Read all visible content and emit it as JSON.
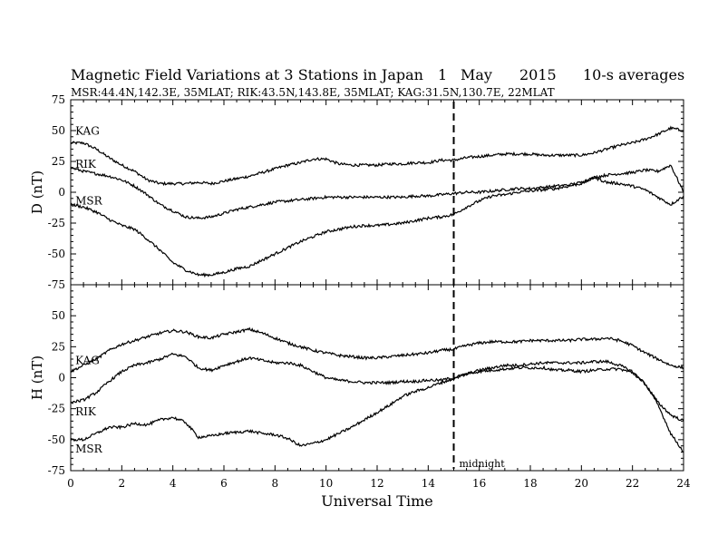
{
  "chart_data": {
    "type": "line",
    "title": {
      "main": "Magnetic Field Variations at 3 Stations in Japan",
      "day": "1",
      "month": "May",
      "year": "2015",
      "resolution": "10-s averages"
    },
    "subtitle": "MSR:44.4N,142.3E, 35MLAT;  RIK:43.5N,143.8E, 35MLAT;  KAG:31.5N,130.7E, 22MLAT",
    "xlabel": "Universal Time",
    "xlim": [
      0,
      24
    ],
    "xticks": [
      "0",
      "2",
      "4",
      "6",
      "8",
      "10",
      "12",
      "14",
      "16",
      "18",
      "20",
      "22",
      "24"
    ],
    "annotation": {
      "x": 15,
      "text": "midnight",
      "style": "dashed vertical line"
    },
    "panels": [
      {
        "ylabel": "D (nT)",
        "ylim": [
          -75,
          75
        ],
        "yticks": [
          "75",
          "50",
          "25",
          "0",
          "-25",
          "-50",
          "-75"
        ],
        "series": [
          {
            "name": "KAG",
            "x": [
              0,
              0.5,
              1,
              1.5,
              2,
              2.5,
              3,
              3.5,
              4,
              4.5,
              5,
              5.5,
              6,
              6.5,
              7,
              7.5,
              8,
              8.5,
              9,
              9.5,
              10,
              10.5,
              11,
              11.5,
              12,
              12.5,
              13,
              13.5,
              14,
              14.5,
              15,
              15.5,
              16,
              16.5,
              17,
              17.5,
              18,
              18.5,
              19,
              19.5,
              20,
              20.5,
              21,
              21.5,
              22,
              22.5,
              23,
              23.5,
              24
            ],
            "values": [
              40,
              40,
              35,
              28,
              22,
              17,
              10,
              7,
              7,
              7,
              8,
              7,
              9,
              11,
              13,
              16,
              19,
              22,
              24,
              27,
              27,
              23,
              22,
              22,
              22,
              23,
              23,
              24,
              24,
              26,
              26,
              28,
              29,
              30,
              31,
              31,
              31,
              30,
              30,
              30,
              30,
              32,
              35,
              38,
              40,
              43,
              47,
              52,
              50
            ]
          },
          {
            "name": "RIK",
            "x": [
              0,
              0.5,
              1,
              1.5,
              2,
              2.5,
              3,
              3.5,
              4,
              4.5,
              5,
              5.5,
              6,
              6.5,
              7,
              7.5,
              8,
              8.5,
              9,
              9.5,
              10,
              10.5,
              11,
              11.5,
              12,
              12.5,
              13,
              13.5,
              14,
              14.5,
              15,
              15.5,
              16,
              16.5,
              17,
              17.5,
              18,
              18.5,
              19,
              19.5,
              20,
              20.5,
              21,
              21.5,
              22,
              22.5,
              23,
              23.5,
              24
            ],
            "values": [
              20,
              17,
              15,
              13,
              10,
              5,
              -2,
              -10,
              -15,
              -20,
              -21,
              -20,
              -17,
              -14,
              -12,
              -10,
              -8,
              -7,
              -6,
              -5,
              -4,
              -4,
              -4,
              -4,
              -4,
              -4,
              -4,
              -3,
              -3,
              -2,
              -1,
              0,
              0,
              1,
              2,
              3,
              3,
              4,
              5,
              6,
              8,
              12,
              14,
              15,
              16,
              18,
              17,
              22,
              0
            ]
          },
          {
            "name": "MSR",
            "x": [
              0,
              0.5,
              1,
              1.5,
              2,
              2.5,
              3,
              3.5,
              4,
              4.5,
              5,
              5.5,
              6,
              6.5,
              7,
              7.5,
              8,
              8.5,
              9,
              9.5,
              10,
              10.5,
              11,
              11.5,
              12,
              12.5,
              13,
              13.5,
              14,
              14.5,
              15,
              15.5,
              16,
              16.5,
              17,
              17.5,
              18,
              18.5,
              19,
              19.5,
              20,
              20.5,
              21,
              21.5,
              22,
              22.5,
              23,
              23.5,
              24
            ],
            "values": [
              -10,
              -12,
              -16,
              -22,
              -27,
              -30,
              -38,
              -47,
              -57,
              -63,
              -67,
              -67,
              -65,
              -62,
              -60,
              -55,
              -50,
              -45,
              -40,
              -36,
              -32,
              -30,
              -28,
              -27,
              -27,
              -26,
              -25,
              -23,
              -21,
              -20,
              -18,
              -12,
              -7,
              -3,
              -2,
              0,
              1,
              2,
              3,
              5,
              7,
              12,
              8,
              7,
              5,
              2,
              -4,
              -10,
              -3
            ]
          }
        ]
      },
      {
        "ylabel": "H (nT)",
        "ylim": [
          -75,
          75
        ],
        "yticks": [
          "75",
          "50",
          "25",
          "0",
          "-25",
          "-50",
          "-75"
        ],
        "series": [
          {
            "name": "KAG",
            "x": [
              0,
              0.5,
              1,
              1.5,
              2,
              2.5,
              3,
              3.5,
              4,
              4.5,
              5,
              5.5,
              6,
              6.5,
              7,
              7.5,
              8,
              8.5,
              9,
              9.5,
              10,
              10.5,
              11,
              11.5,
              12,
              12.5,
              13,
              13.5,
              14,
              14.5,
              15,
              15.5,
              16,
              16.5,
              17,
              17.5,
              18,
              18.5,
              19,
              19.5,
              20,
              20.5,
              21,
              21.5,
              22,
              22.5,
              23,
              23.5,
              24
            ],
            "values": [
              5,
              10,
              15,
              22,
              27,
              30,
              33,
              36,
              38,
              37,
              33,
              32,
              35,
              37,
              39,
              36,
              32,
              28,
              25,
              22,
              20,
              18,
              17,
              16,
              16,
              17,
              18,
              19,
              20,
              22,
              23,
              26,
              28,
              29,
              29,
              29,
              30,
              30,
              30,
              30,
              31,
              31,
              32,
              30,
              26,
              20,
              15,
              10,
              8
            ]
          },
          {
            "name": "RIK",
            "x": [
              0,
              0.5,
              1,
              1.5,
              2,
              2.5,
              3,
              3.5,
              4,
              4.5,
              5,
              5.5,
              6,
              6.5,
              7,
              7.5,
              8,
              8.5,
              9,
              9.5,
              10,
              10.5,
              11,
              11.5,
              12,
              12.5,
              13,
              13.5,
              14,
              14.5,
              15,
              15.5,
              16,
              16.5,
              17,
              17.5,
              18,
              18.5,
              19,
              19.5,
              20,
              20.5,
              21,
              21.5,
              22,
              22.5,
              23,
              23.5,
              24
            ],
            "values": [
              -20,
              -18,
              -12,
              -3,
              5,
              10,
              12,
              15,
              19,
              17,
              8,
              6,
              10,
              13,
              16,
              14,
              12,
              12,
              10,
              5,
              0,
              -2,
              -3,
              -4,
              -4,
              -4,
              -3,
              -3,
              -2,
              -2,
              0,
              3,
              6,
              8,
              10,
              10,
              11,
              12,
              12,
              12,
              12,
              13,
              13,
              10,
              5,
              -5,
              -20,
              -30,
              -35
            ]
          },
          {
            "name": "MSR",
            "x": [
              0,
              0.5,
              1,
              1.5,
              2,
              2.5,
              3,
              3.5,
              4,
              4.5,
              5,
              5.5,
              6,
              6.5,
              7,
              7.5,
              8,
              8.5,
              9,
              9.5,
              10,
              10.5,
              11,
              11.5,
              12,
              12.5,
              13,
              13.5,
              14,
              14.5,
              15,
              15.5,
              16,
              16.5,
              17,
              17.5,
              18,
              18.5,
              19,
              19.5,
              20,
              20.5,
              21,
              21.5,
              22,
              22.5,
              23,
              23.5,
              24
            ],
            "values": [
              -50,
              -50,
              -45,
              -40,
              -40,
              -37,
              -38,
              -34,
              -32,
              -36,
              -48,
              -47,
              -45,
              -44,
              -43,
              -45,
              -46,
              -49,
              -55,
              -53,
              -50,
              -45,
              -40,
              -34,
              -28,
              -22,
              -15,
              -11,
              -8,
              -4,
              -1,
              3,
              5,
              6,
              7,
              8,
              8,
              8,
              6,
              6,
              5,
              6,
              7,
              7,
              4,
              -5,
              -22,
              -45,
              -60
            ]
          }
        ]
      }
    ],
    "line_color": "#000000",
    "grid": false
  }
}
